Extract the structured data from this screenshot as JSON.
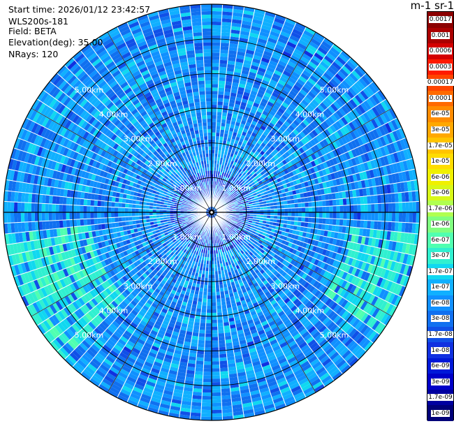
{
  "info": {
    "start_time": "Start time: 2026/01/12 23:42:57",
    "model": "WLS200s-181",
    "field": "Field: BETA",
    "elevation": "Elevation(deg): 35.00",
    "nrays": "NRays: 120"
  },
  "colorbar": {
    "unit_label": "m-1 sr-1",
    "labels": [
      "0.0017",
      "0.001",
      "0.0006",
      "0.0003",
      "0.00017",
      "0.0001",
      "6e-05",
      "3e-05",
      "1.7e-05",
      "1e-05",
      "6e-06",
      "3e-06",
      "1.7e-06",
      "1e-06",
      "6e-07",
      "3e-07",
      "1.7e-07",
      "1e-07",
      "6e-08",
      "3e-08",
      "1.7e-08",
      "1e-08",
      "6e-09",
      "3e-09",
      "1.7e-09",
      "1e-09"
    ],
    "colors": [
      "#8b0000",
      "#aa0000",
      "#d40000",
      "#ff1a00",
      "#ff4400",
      "#ff6a00",
      "#ff8c00",
      "#ffa800",
      "#ffc400",
      "#ffdc00",
      "#f0f000",
      "#d8f818",
      "#b0ff50",
      "#80ff80",
      "#50ffb0",
      "#30f0d0",
      "#10d8f0",
      "#10b0ff",
      "#1090ff",
      "#1070f0",
      "#1050e8",
      "#1030e0",
      "#0018d8",
      "#0000c8",
      "#0000a0",
      "#000078"
    ]
  },
  "chart_data": {
    "type": "heatmap",
    "projection": "polar-ppi",
    "field": "BETA",
    "elevation_deg": 35.0,
    "n_rays": 120,
    "max_range_km": 6.0,
    "range_rings_km": [
      1.0,
      2.0,
      3.0,
      4.0,
      5.0
    ],
    "ring_labels": [
      "1.00km",
      "2.00km",
      "3.00km",
      "4.00km",
      "5.00km"
    ],
    "value_range": [
      1e-09,
      0.0017
    ],
    "scale": "log",
    "dominant_value_range": [
      3e-08,
      3e-07
    ],
    "enhanced_sectors": [
      {
        "azimuth_from_deg": 225,
        "azimuth_to_deg": 265,
        "range_from_km": 3.5,
        "range_to_km": 6.0,
        "value": 3e-07
      },
      {
        "azimuth_from_deg": 95,
        "azimuth_to_deg": 125,
        "range_from_km": 4.0,
        "range_to_km": 6.0,
        "value": 3e-07
      }
    ]
  }
}
